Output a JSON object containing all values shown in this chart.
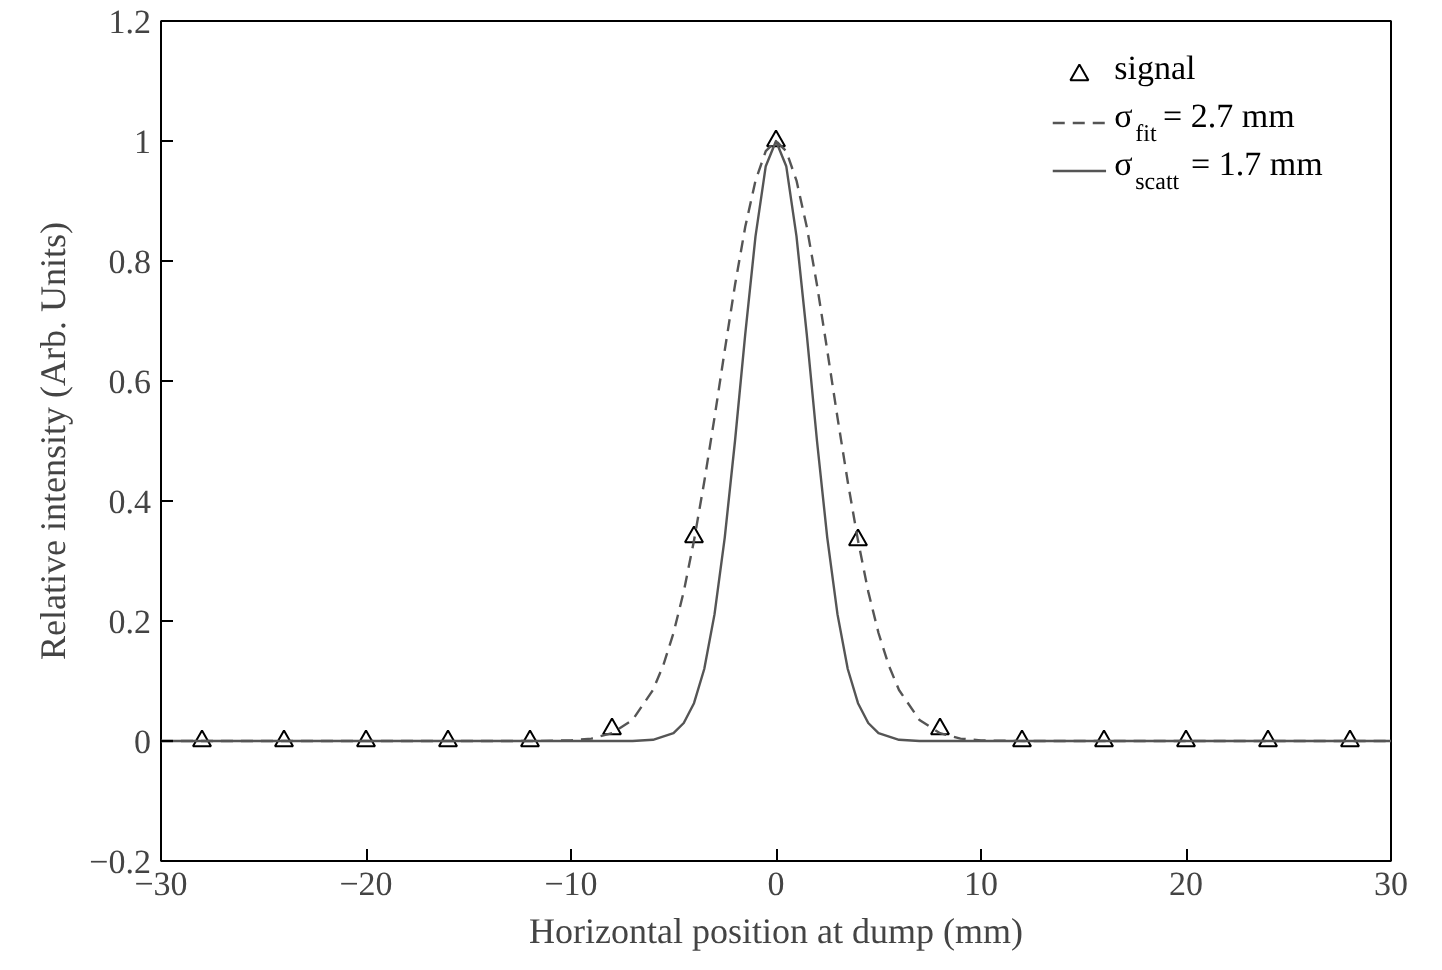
{
  "chart_data": {
    "type": "line",
    "xlabel": "Horizontal position at dump (mm)",
    "ylabel": "Relative intensity (Arb. Units)",
    "xlim": [
      -30,
      30
    ],
    "ylim": [
      -0.2,
      1.2
    ],
    "xticks": [
      {
        "value": -30,
        "label": "−30"
      },
      {
        "value": -20,
        "label": "−20"
      },
      {
        "value": -10,
        "label": "−10"
      },
      0,
      10,
      20,
      30
    ],
    "yticks": [
      {
        "value": -0.2,
        "label": "−0.2"
      },
      0,
      0.2,
      0.4,
      0.6,
      0.8,
      1,
      1.2
    ],
    "grid": false,
    "legend": "top right",
    "series": [
      {
        "name": "signal",
        "type": "scatter",
        "marker": "triangle",
        "color": "#000000",
        "x": [
          -28,
          -24,
          -20,
          -16,
          -12,
          -8,
          -4,
          0,
          4,
          8,
          12,
          16,
          20,
          24,
          28
        ],
        "values": [
          0,
          0,
          0,
          0,
          0,
          0.02,
          0.34,
          1,
          0.335,
          0.02,
          0,
          0,
          0,
          0,
          0
        ]
      },
      {
        "name": "σ$_{fit}$ = 2.7 mm",
        "line_style": "dashed",
        "color": "#555555",
        "x": [
          -30,
          -12,
          -10,
          -9,
          -8,
          -7,
          -6,
          -5.5,
          -5,
          -4.5,
          -4,
          -3.5,
          -3,
          -2.5,
          -2,
          -1.5,
          -1,
          -0.5,
          0,
          0.5,
          1,
          1.5,
          2,
          2.5,
          3,
          3.5,
          4,
          4.5,
          5,
          5.5,
          6,
          7,
          8,
          9,
          10,
          12,
          30
        ],
        "values": [
          0,
          0,
          0.001,
          0.004,
          0.013,
          0.035,
          0.085,
          0.126,
          0.18,
          0.249,
          0.334,
          0.432,
          0.539,
          0.651,
          0.76,
          0.857,
          0.934,
          0.983,
          1,
          0.983,
          0.934,
          0.857,
          0.76,
          0.651,
          0.539,
          0.432,
          0.334,
          0.249,
          0.18,
          0.126,
          0.085,
          0.035,
          0.013,
          0.004,
          0.001,
          0,
          0
        ]
      },
      {
        "name": "σ$_{scatt}$= 1.7 mm",
        "line_style": "solid",
        "color": "#555555",
        "x": [
          -30,
          -7,
          -6,
          -5,
          -4.5,
          -4,
          -3.5,
          -3,
          -2.5,
          -2,
          -1.5,
          -1,
          -0.5,
          0,
          0.5,
          1,
          1.5,
          2,
          2.5,
          3,
          3.5,
          4,
          4.5,
          5,
          6,
          7,
          30
        ],
        "values": [
          0,
          0,
          0.002,
          0.013,
          0.03,
          0.063,
          0.12,
          0.211,
          0.339,
          0.5,
          0.678,
          0.841,
          0.958,
          1,
          0.958,
          0.841,
          0.678,
          0.5,
          0.339,
          0.211,
          0.12,
          0.063,
          0.03,
          0.013,
          0.002,
          0,
          0
        ]
      }
    ]
  }
}
